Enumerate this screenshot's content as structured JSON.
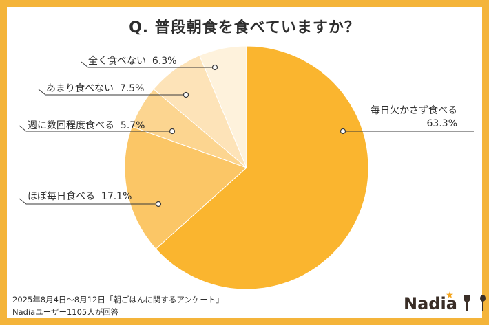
{
  "chart_data": {
    "type": "pie",
    "title": "Q. 普段朝食を食べていますか？",
    "start": "12 o'clock, clockwise",
    "slices": [
      {
        "label": "毎日欠かさず食べる",
        "value": 63.3,
        "value_label": "63.3%",
        "color": "#FAB52F"
      },
      {
        "label": "ほぼ毎日食べる",
        "value": 17.1,
        "value_label": "17.1%",
        "color": "#FBC666"
      },
      {
        "label": "週に数回程度食べる",
        "value": 5.7,
        "value_label": "5.7%",
        "color": "#FCD590"
      },
      {
        "label": "あまり食べない",
        "value": 7.5,
        "value_label": "7.5%",
        "color": "#FDE3B8"
      },
      {
        "label": "全く食べない",
        "value": 6.3,
        "value_label": "6.3%",
        "color": "#FEF2DC"
      }
    ]
  },
  "footer": {
    "line1": "2025年8月4日～8月12日「朝ごはんに関するアンケート」",
    "line2": "Nadiaユーザー1105人が回答"
  },
  "logo": {
    "text": "Nadia"
  },
  "colors": {
    "frame": "#F4B43A",
    "text": "#2E2E2E",
    "logo": "#3A2E27"
  }
}
